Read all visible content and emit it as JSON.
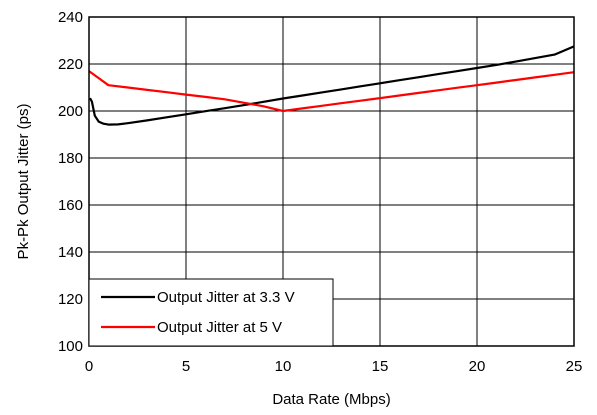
{
  "chart_data": {
    "type": "line",
    "title": "",
    "xlabel": "Data Rate (Mbps)",
    "ylabel": "Pk-Pk Output Jitter (ps)",
    "xlim": [
      0,
      25
    ],
    "ylim": [
      100,
      240
    ],
    "xticks": [
      0,
      5,
      10,
      15,
      20,
      25
    ],
    "yticks": [
      100,
      120,
      140,
      160,
      180,
      200,
      220,
      240
    ],
    "grid": true,
    "legend_position": "bottom-left",
    "series": [
      {
        "name": "Output Jitter at 3.3 V",
        "color": "#000000",
        "x": [
          0.05,
          0.15,
          0.3,
          0.5,
          0.75,
          1.0,
          1.5,
          2,
          3,
          4,
          5,
          6,
          7,
          8,
          9,
          10,
          11,
          12,
          13,
          14,
          15,
          16,
          17,
          18,
          19,
          20,
          21,
          22,
          23,
          24,
          25
        ],
        "y": [
          205.5,
          204,
          198,
          195.5,
          194.6,
          194.2,
          194.3,
          194.8,
          196,
          197.3,
          198.6,
          199.9,
          201.2,
          202.5,
          203.9,
          205.3,
          206.6,
          207.9,
          209.2,
          210.5,
          211.8,
          213.1,
          214.4,
          215.7,
          217,
          218.3,
          219.6,
          221,
          222.5,
          224,
          227.5
        ]
      },
      {
        "name": "Output Jitter at 5 V",
        "color": "#ff0000",
        "x": [
          0,
          0.5,
          1,
          2,
          3,
          4,
          5,
          6,
          7,
          8,
          9,
          10,
          11,
          12,
          13,
          14,
          15,
          16,
          17,
          18,
          19,
          20,
          21,
          22,
          23,
          24,
          25
        ],
        "y": [
          217,
          214,
          211,
          210,
          209,
          208,
          207,
          206,
          205,
          203.5,
          202,
          200,
          201.1,
          202.2,
          203.3,
          204.4,
          205.5,
          206.6,
          207.7,
          208.8,
          209.9,
          211,
          212.1,
          213.2,
          214.3,
          215.4,
          216.5
        ]
      }
    ]
  }
}
